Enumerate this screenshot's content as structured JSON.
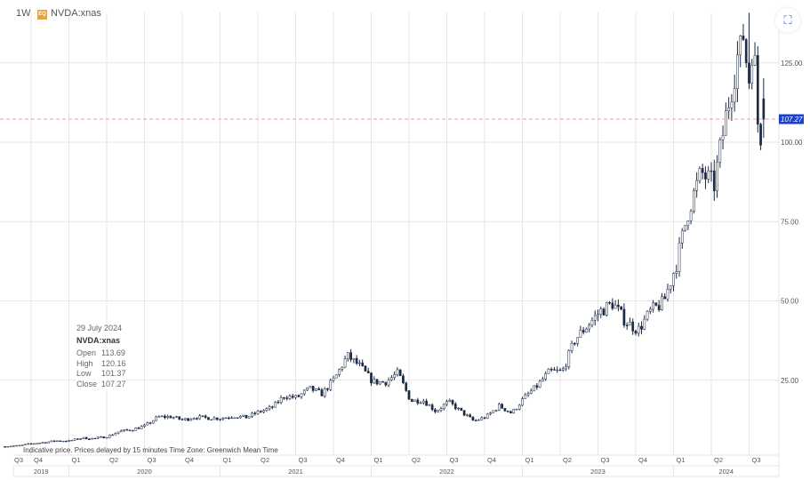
{
  "header": {
    "interval": "1W",
    "symbol": "NVDA:xnas",
    "logo_text": "EQ"
  },
  "legend": {
    "date": "29 July 2024",
    "symbol": "NVDA:xnas",
    "open_label": "Open",
    "open": "113.69",
    "high_label": "High",
    "high": "120.16",
    "low_label": "Low",
    "low": "101.37",
    "close_label": "Close",
    "close": "107.27"
  },
  "footer": "Indicative price. Prices delayed by 15 minutes    Time Zone: Greenwich Mean Time",
  "colors": {
    "up_fill": "#ffffff",
    "candle": "#1b2a44",
    "price_line": "#e8a0a0",
    "price_label": "#1a3fd4",
    "grid": "#e6e6e6"
  },
  "chart_data": {
    "type": "candlestick",
    "interval": "weekly",
    "title": "NVDA:xnas",
    "ylim": [
      0,
      145
    ],
    "y_ticks": [
      25,
      50,
      75,
      100,
      125
    ],
    "y_tick_labels": [
      "25.00",
      "50.00",
      "75.00",
      "100.00",
      "125.00"
    ],
    "quarter_labels": [
      "Q3",
      "Q4",
      "Q1",
      "Q2",
      "Q3",
      "Q4",
      "Q1",
      "Q2",
      "Q3",
      "Q4",
      "Q1",
      "Q2",
      "Q3",
      "Q4",
      "Q1",
      "Q2",
      "Q3",
      "Q4",
      "Q1",
      "Q2",
      "Q3"
    ],
    "year_labels": [
      "2019",
      "2020",
      "2021",
      "2022",
      "2023",
      "2024"
    ],
    "monthly_closes_from_2019_07": [
      4.2,
      4.2,
      4.35,
      5.0,
      5.4,
      5.9,
      5.9,
      6.8,
      6.6,
      7.3,
      8.9,
      9.5,
      10.6,
      13.4,
      13.5,
      12.5,
      13.4,
      13.1,
      13.0,
      13.7,
      13.3,
      15.0,
      16.3,
      20.0,
      19.5,
      22.4,
      20.7,
      25.6,
      32.7,
      29.4,
      24.5,
      24.4,
      27.3,
      18.5,
      18.7,
      15.2,
      18.2,
      15.1,
      12.1,
      13.5,
      16.9,
      14.6,
      19.5,
      23.2,
      27.8,
      27.7,
      37.8,
      42.3,
      46.7,
      49.3,
      43.5,
      40.8,
      46.8,
      49.5,
      61.5,
      79.1,
      90.4,
      86.4,
      109.6,
      130.0,
      113.7
    ],
    "last_candle": {
      "date": "29 July 2024",
      "open": 113.69,
      "high": 120.16,
      "low": 101.37,
      "close": 107.27
    },
    "current_price": 107.27,
    "current_price_label": "107.27"
  }
}
